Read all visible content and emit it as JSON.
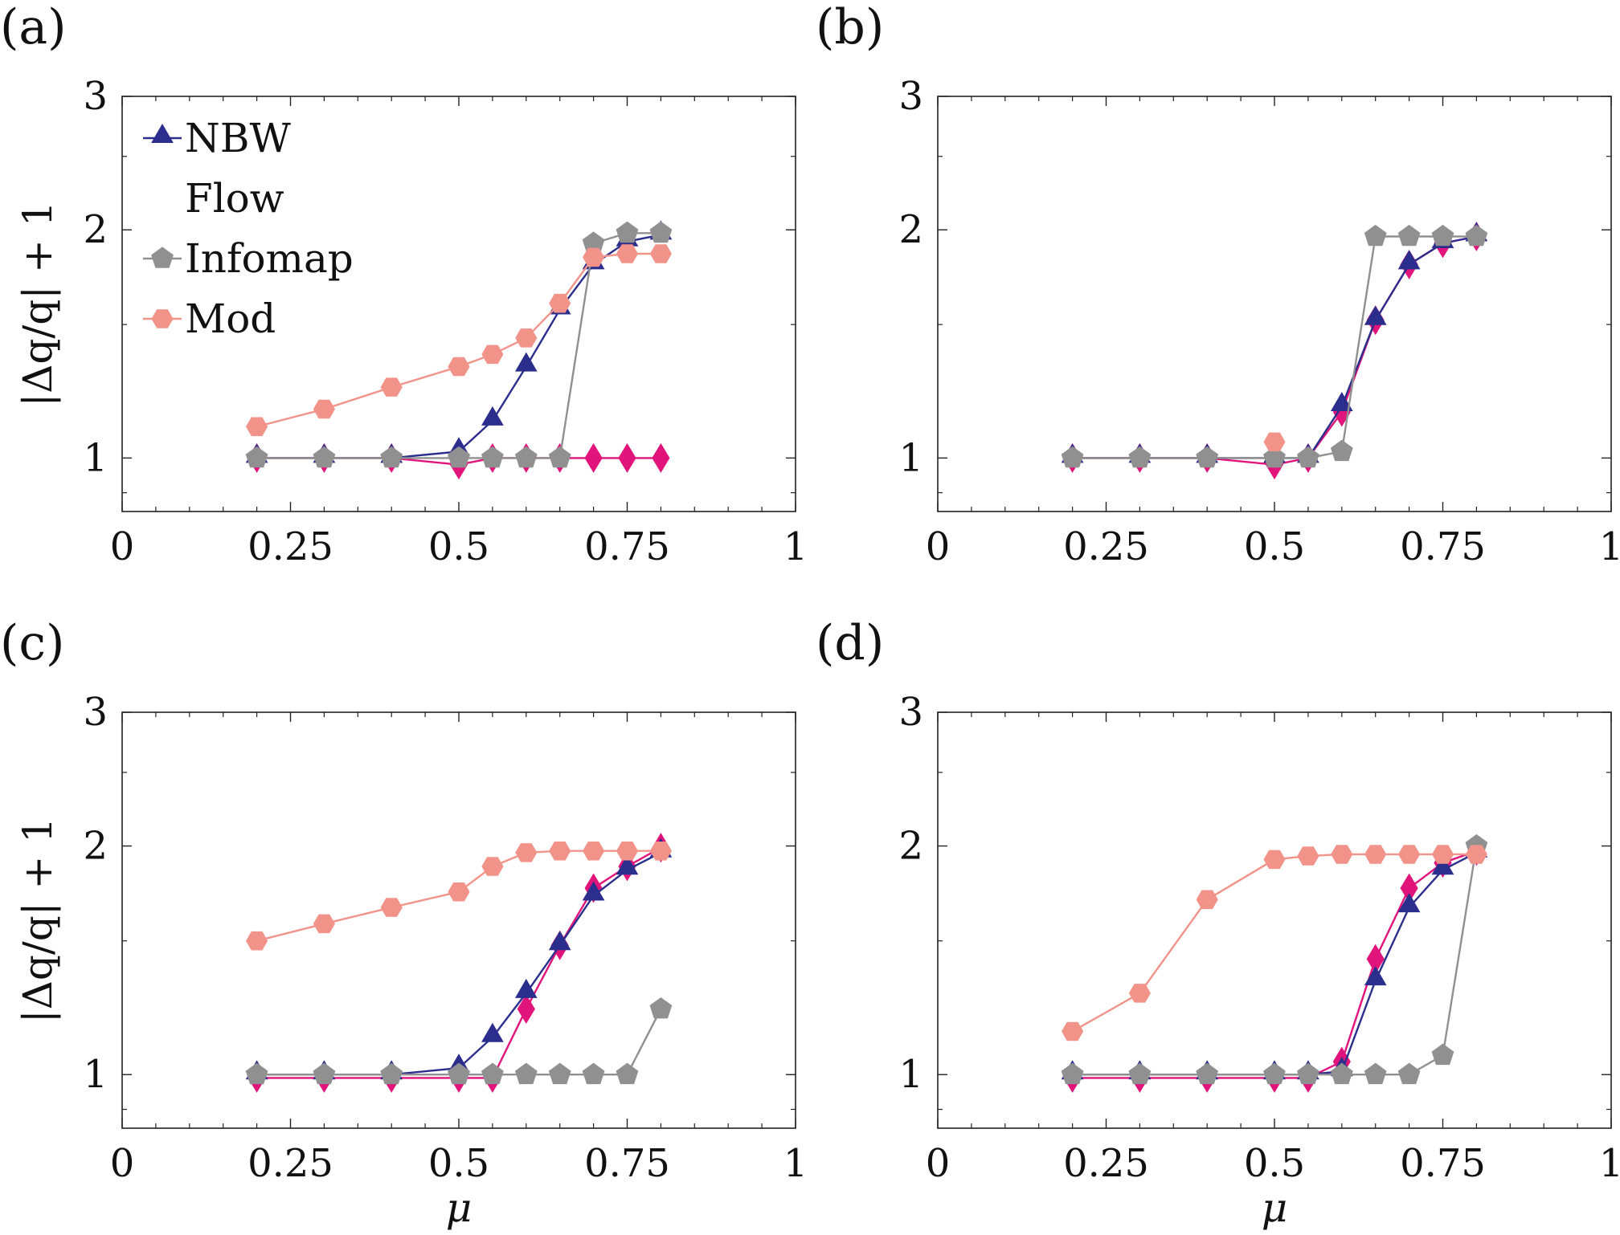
{
  "legend": [
    {
      "name": "NBW",
      "series": "nbw"
    },
    {
      "name": "Flow",
      "series": "flow"
    },
    {
      "name": "Infomap",
      "series": "infomap"
    },
    {
      "name": "Mod",
      "series": "mod"
    }
  ],
  "series_style": {
    "nbw": {
      "color": "#2b2e8c",
      "marker": "triangle"
    },
    "flow": {
      "color": "#e0147a",
      "marker": "diamond"
    },
    "infomap": {
      "color": "#909090",
      "marker": "pentagon"
    },
    "mod": {
      "color": "#f2938a",
      "marker": "hexagon"
    }
  },
  "chart_data": [
    {
      "type": "line",
      "panel_label": "(a)",
      "xlabel": "",
      "ylabel": "|Δq/q| + 1",
      "xlim": [
        0,
        1
      ],
      "ylim": [
        0.85,
        3
      ],
      "yscale": "log",
      "xticks": [
        "0",
        "0.25",
        "0.5",
        "0.75",
        "1"
      ],
      "yticks": [
        "1",
        "2",
        "3"
      ],
      "show_legend": true,
      "legend_position": "top-left",
      "x": [
        0.2,
        0.3,
        0.4,
        0.5,
        0.55,
        0.6,
        0.65,
        0.7,
        0.75,
        0.8
      ],
      "series": [
        {
          "name": "Flow",
          "key": "flow",
          "values": [
            1.0,
            1.0,
            1.0,
            0.98,
            1.0,
            1.0,
            1.0,
            1.0,
            1.0,
            1.0
          ]
        },
        {
          "name": "NBW",
          "key": "nbw",
          "values": [
            1.0,
            1.0,
            1.0,
            1.02,
            1.12,
            1.32,
            1.57,
            1.8,
            1.93,
            1.97
          ]
        },
        {
          "name": "Infomap",
          "key": "infomap",
          "x": [
            0.2,
            0.3,
            0.4,
            0.5,
            0.55,
            0.6,
            0.65,
            0.7,
            0.75,
            0.8
          ],
          "values": [
            1.0,
            1.0,
            1.0,
            1.0,
            1.0,
            1.0,
            1.0,
            1.92,
            1.98,
            1.98
          ]
        },
        {
          "name": "Mod",
          "key": "mod",
          "values": [
            1.1,
            1.16,
            1.24,
            1.32,
            1.37,
            1.44,
            1.6,
            1.84,
            1.86,
            1.86
          ]
        }
      ]
    },
    {
      "type": "line",
      "panel_label": "(b)",
      "xlabel": "",
      "ylabel": "",
      "xlim": [
        0,
        1
      ],
      "ylim": [
        0.85,
        3
      ],
      "yscale": "log",
      "xticks": [
        "0",
        "0.25",
        "0.5",
        "0.75",
        "1"
      ],
      "yticks": [
        "1",
        "2",
        "3"
      ],
      "show_legend": false,
      "x": [
        0.2,
        0.3,
        0.4,
        0.5,
        0.55,
        0.6,
        0.65,
        0.7,
        0.75,
        0.8
      ],
      "series": [
        {
          "name": "Flow",
          "key": "flow",
          "values": [
            1.0,
            1.0,
            1.0,
            0.98,
            1.0,
            1.15,
            1.52,
            1.8,
            1.92,
            1.96
          ]
        },
        {
          "name": "NBW",
          "key": "nbw",
          "values": [
            1.0,
            1.0,
            1.0,
            1.0,
            1.0,
            1.17,
            1.52,
            1.8,
            1.92,
            1.96
          ]
        },
        {
          "name": "Infomap",
          "key": "infomap",
          "values": [
            1.0,
            1.0,
            1.0,
            1.0,
            1.0,
            1.02,
            1.96,
            1.96,
            1.96,
            1.96
          ]
        },
        {
          "name": "Mod",
          "key": "mod",
          "x": [
            0.5
          ],
          "values": [
            1.05
          ]
        }
      ]
    },
    {
      "type": "line",
      "panel_label": "(c)",
      "xlabel": "μ",
      "ylabel": "|Δq/q| + 1",
      "xlim": [
        0,
        1
      ],
      "ylim": [
        0.85,
        3
      ],
      "yscale": "log",
      "xticks": [
        "0",
        "0.25",
        "0.5",
        "0.75",
        "1"
      ],
      "yticks": [
        "1",
        "2",
        "3"
      ],
      "show_legend": false,
      "x": [
        0.2,
        0.3,
        0.4,
        0.5,
        0.55,
        0.6,
        0.65,
        0.7,
        0.75,
        0.8
      ],
      "series": [
        {
          "name": "Flow",
          "key": "flow",
          "values": [
            0.99,
            0.99,
            0.99,
            0.99,
            0.99,
            1.22,
            1.48,
            1.76,
            1.88,
            1.99
          ]
        },
        {
          "name": "NBW",
          "key": "nbw",
          "values": [
            1.0,
            1.0,
            1.0,
            1.02,
            1.12,
            1.28,
            1.48,
            1.72,
            1.86,
            1.96
          ]
        },
        {
          "name": "Infomap",
          "key": "infomap",
          "values": [
            1.0,
            1.0,
            1.0,
            1.0,
            1.0,
            1.0,
            1.0,
            1.0,
            1.0,
            1.22
          ]
        },
        {
          "name": "Mod",
          "key": "mod",
          "values": [
            1.5,
            1.58,
            1.66,
            1.74,
            1.88,
            1.96,
            1.97,
            1.97,
            1.97,
            1.97
          ]
        }
      ]
    },
    {
      "type": "line",
      "panel_label": "(d)",
      "xlabel": "μ",
      "ylabel": "",
      "xlim": [
        0,
        1
      ],
      "ylim": [
        0.85,
        3
      ],
      "yscale": "log",
      "xticks": [
        "0",
        "0.25",
        "0.5",
        "0.75",
        "1"
      ],
      "yticks": [
        "1",
        "2",
        "3"
      ],
      "show_legend": false,
      "x": [
        0.2,
        0.3,
        0.4,
        0.5,
        0.55,
        0.6,
        0.65,
        0.7,
        0.75,
        0.8
      ],
      "series": [
        {
          "name": "Flow",
          "key": "flow",
          "values": [
            0.99,
            0.99,
            0.99,
            0.99,
            0.99,
            1.04,
            1.42,
            1.76,
            1.9,
            1.97
          ]
        },
        {
          "name": "NBW",
          "key": "nbw",
          "values": [
            1.0,
            1.0,
            1.0,
            1.0,
            1.0,
            1.01,
            1.33,
            1.66,
            1.86,
            1.96
          ]
        },
        {
          "name": "Infomap",
          "key": "infomap",
          "values": [
            1.0,
            1.0,
            1.0,
            1.0,
            1.0,
            1.0,
            1.0,
            1.0,
            1.06,
            2.0
          ]
        },
        {
          "name": "Mod",
          "key": "mod",
          "values": [
            1.14,
            1.28,
            1.7,
            1.92,
            1.94,
            1.95,
            1.95,
            1.95,
            1.95,
            1.95
          ]
        }
      ]
    }
  ]
}
